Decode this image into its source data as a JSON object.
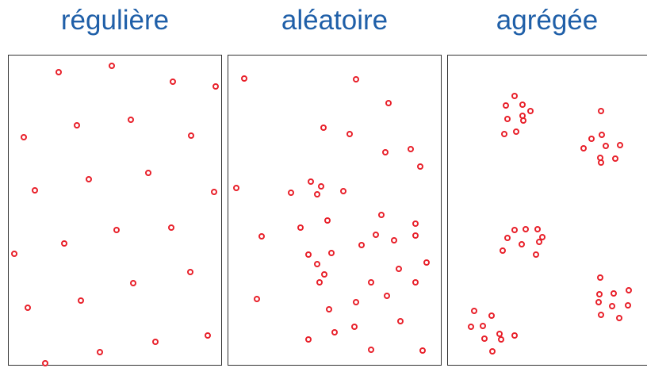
{
  "colors": {
    "title": "#1f5fa8",
    "point": "#e8202a",
    "border": "#333333"
  },
  "panels": [
    {
      "title": "régulière",
      "points": [
        [
          74,
          91
        ],
        [
          141,
          83
        ],
        [
          218,
          103
        ],
        [
          272,
          109
        ],
        [
          30,
          173
        ],
        [
          97,
          158
        ],
        [
          165,
          151
        ],
        [
          241,
          171
        ],
        [
          44,
          240
        ],
        [
          112,
          226
        ],
        [
          187,
          218
        ],
        [
          270,
          242
        ],
        [
          18,
          320
        ],
        [
          81,
          307
        ],
        [
          147,
          290
        ],
        [
          216,
          287
        ],
        [
          35,
          388
        ],
        [
          102,
          379
        ],
        [
          168,
          357
        ],
        [
          240,
          343
        ],
        [
          57,
          458
        ],
        [
          126,
          444
        ],
        [
          196,
          431
        ],
        [
          262,
          423
        ]
      ]
    },
    {
      "title": "aléatoire",
      "points": [
        [
          308,
          99
        ],
        [
          449,
          100
        ],
        [
          490,
          130
        ],
        [
          408,
          161
        ],
        [
          441,
          169
        ],
        [
          486,
          192
        ],
        [
          518,
          188
        ],
        [
          530,
          210
        ],
        [
          298,
          237
        ],
        [
          367,
          243
        ],
        [
          392,
          229
        ],
        [
          405,
          235
        ],
        [
          400,
          245
        ],
        [
          433,
          241
        ],
        [
          330,
          298
        ],
        [
          379,
          287
        ],
        [
          413,
          278
        ],
        [
          481,
          271
        ],
        [
          474,
          296
        ],
        [
          497,
          303
        ],
        [
          524,
          282
        ],
        [
          524,
          297
        ],
        [
          456,
          309
        ],
        [
          389,
          321
        ],
        [
          418,
          319
        ],
        [
          400,
          333
        ],
        [
          538,
          331
        ],
        [
          409,
          346
        ],
        [
          403,
          356
        ],
        [
          503,
          339
        ],
        [
          468,
          356
        ],
        [
          524,
          356
        ],
        [
          324,
          377
        ],
        [
          488,
          373
        ],
        [
          449,
          381
        ],
        [
          415,
          390
        ],
        [
          505,
          405
        ],
        [
          389,
          428
        ],
        [
          422,
          419
        ],
        [
          447,
          412
        ],
        [
          468,
          441
        ],
        [
          533,
          442
        ]
      ]
    },
    {
      "title": "agrégée",
      "points": [
        [
          649,
          121
        ],
        [
          638,
          133
        ],
        [
          659,
          132
        ],
        [
          669,
          140
        ],
        [
          640,
          150
        ],
        [
          659,
          146
        ],
        [
          660,
          152
        ],
        [
          636,
          169
        ],
        [
          651,
          166
        ],
        [
          758,
          140
        ],
        [
          746,
          175
        ],
        [
          759,
          170
        ],
        [
          736,
          187
        ],
        [
          764,
          184
        ],
        [
          782,
          183
        ],
        [
          757,
          199
        ],
        [
          758,
          205
        ],
        [
          776,
          200
        ],
        [
          649,
          290
        ],
        [
          663,
          289
        ],
        [
          678,
          289
        ],
        [
          640,
          300
        ],
        [
          684,
          299
        ],
        [
          658,
          308
        ],
        [
          680,
          305
        ],
        [
          634,
          316
        ],
        [
          676,
          321
        ],
        [
          757,
          350
        ],
        [
          756,
          371
        ],
        [
          774,
          370
        ],
        [
          793,
          366
        ],
        [
          755,
          381
        ],
        [
          772,
          386
        ],
        [
          792,
          385
        ],
        [
          758,
          397
        ],
        [
          781,
          401
        ],
        [
          598,
          392
        ],
        [
          620,
          398
        ],
        [
          594,
          412
        ],
        [
          609,
          411
        ],
        [
          630,
          421
        ],
        [
          611,
          427
        ],
        [
          632,
          428
        ],
        [
          649,
          423
        ],
        [
          621,
          443
        ]
      ]
    }
  ]
}
